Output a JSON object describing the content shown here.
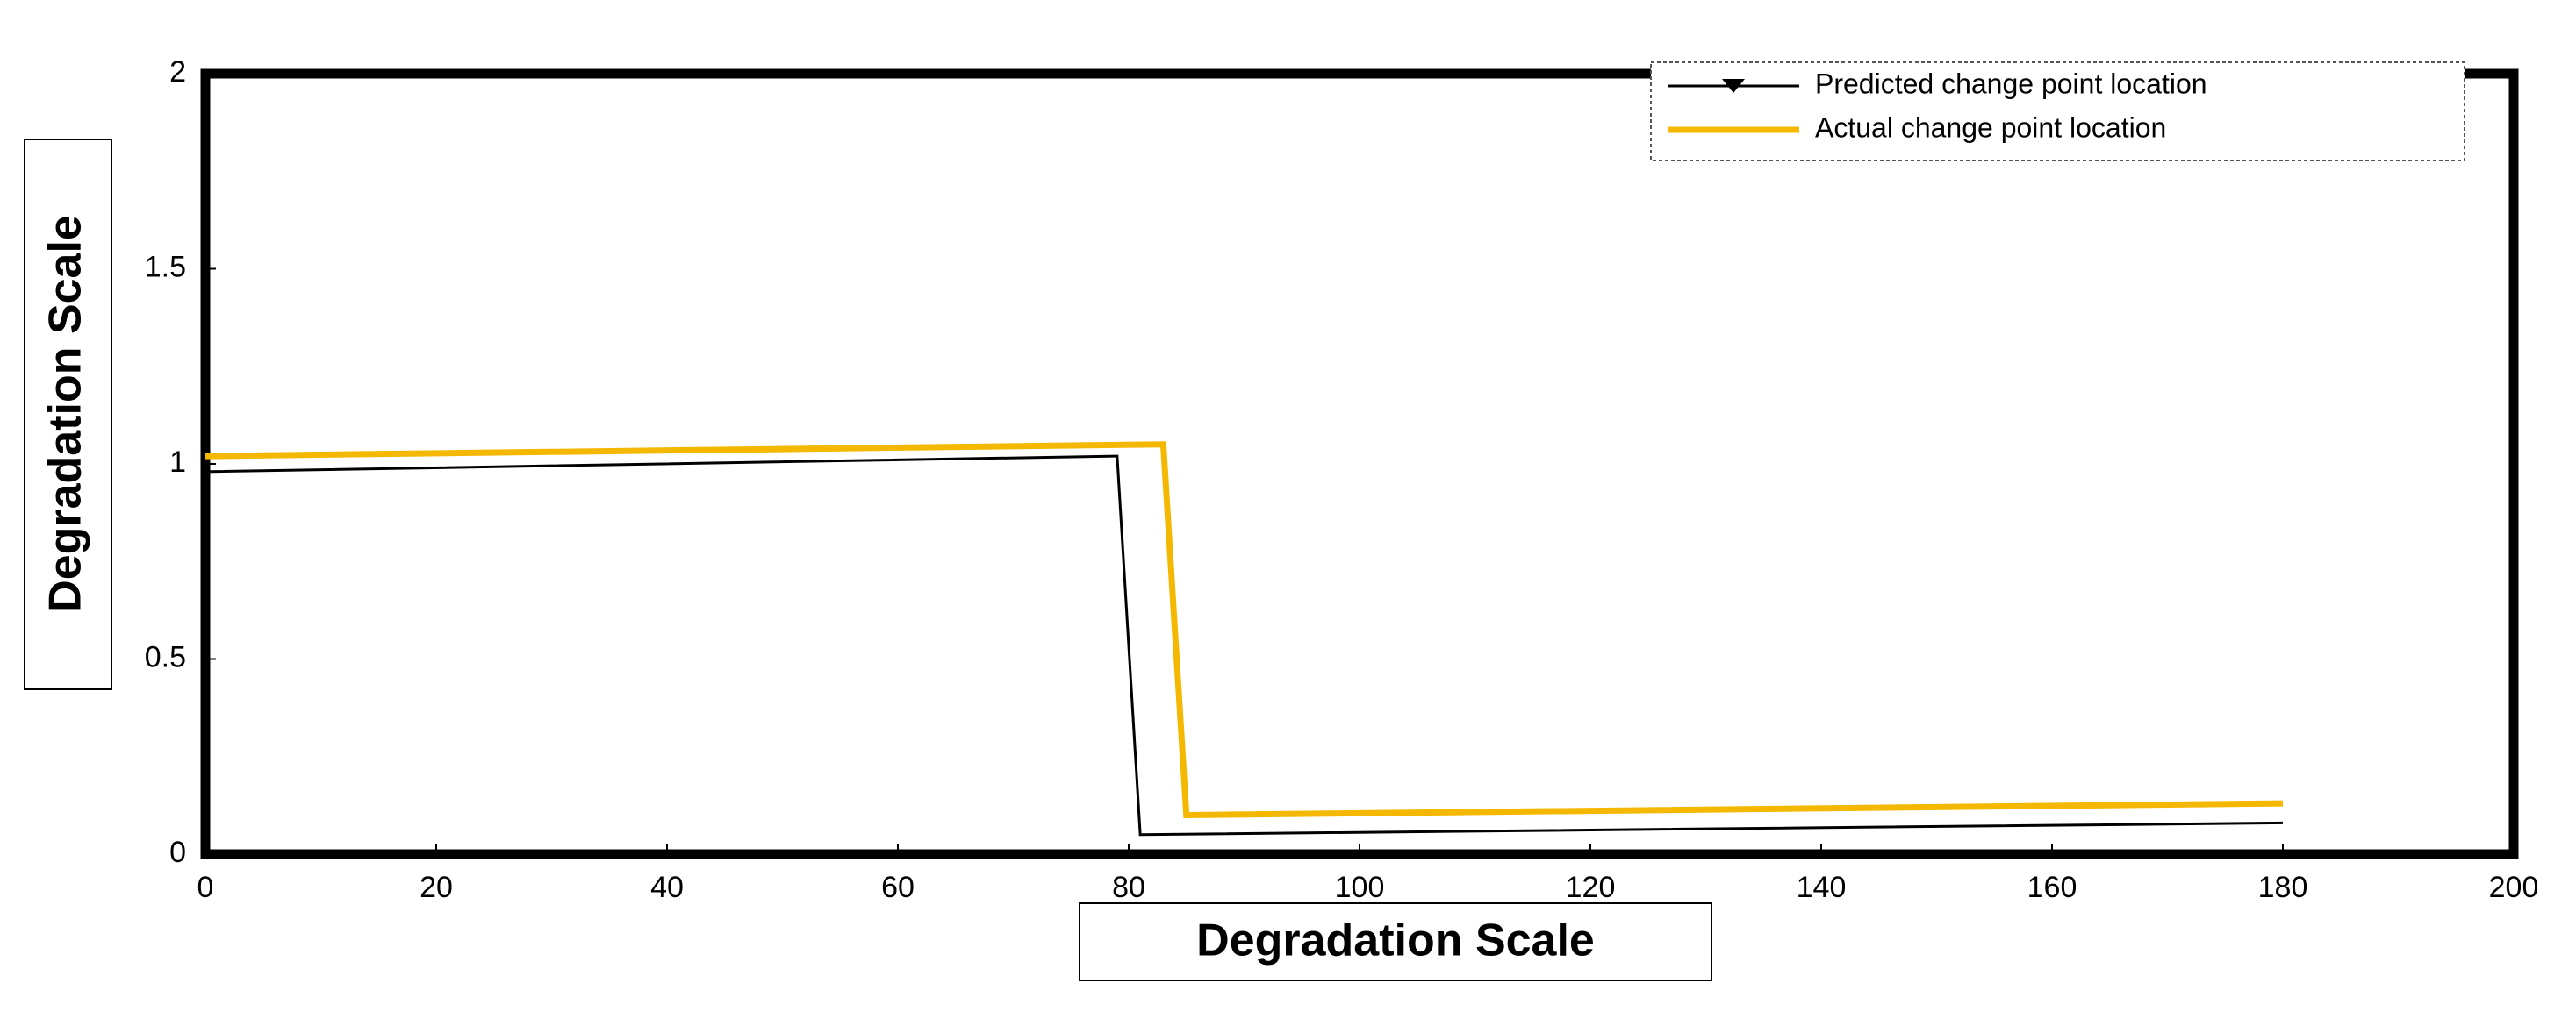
{
  "chart_data": {
    "type": "line",
    "xlabel": "Degradation Scale",
    "ylabel": "Degradation Scale",
    "xlim": [
      0,
      200
    ],
    "ylim": [
      0,
      2
    ],
    "xticks": [
      0,
      20,
      40,
      60,
      80,
      100,
      120,
      140,
      160,
      180,
      200
    ],
    "yticks": [
      0,
      0.5,
      1,
      1.5,
      2
    ],
    "grid": false,
    "legend": "upper right",
    "series": [
      {
        "name": "Predicted change point location",
        "color": "#000000",
        "x": [
          0,
          79,
          81,
          180
        ],
        "values": [
          0.98,
          1.02,
          0.05,
          0.08
        ]
      },
      {
        "name": "Actual change point location",
        "color": "#f5b800",
        "x": [
          0,
          83,
          85,
          180
        ],
        "values": [
          1.02,
          1.05,
          0.1,
          0.13
        ]
      }
    ]
  }
}
